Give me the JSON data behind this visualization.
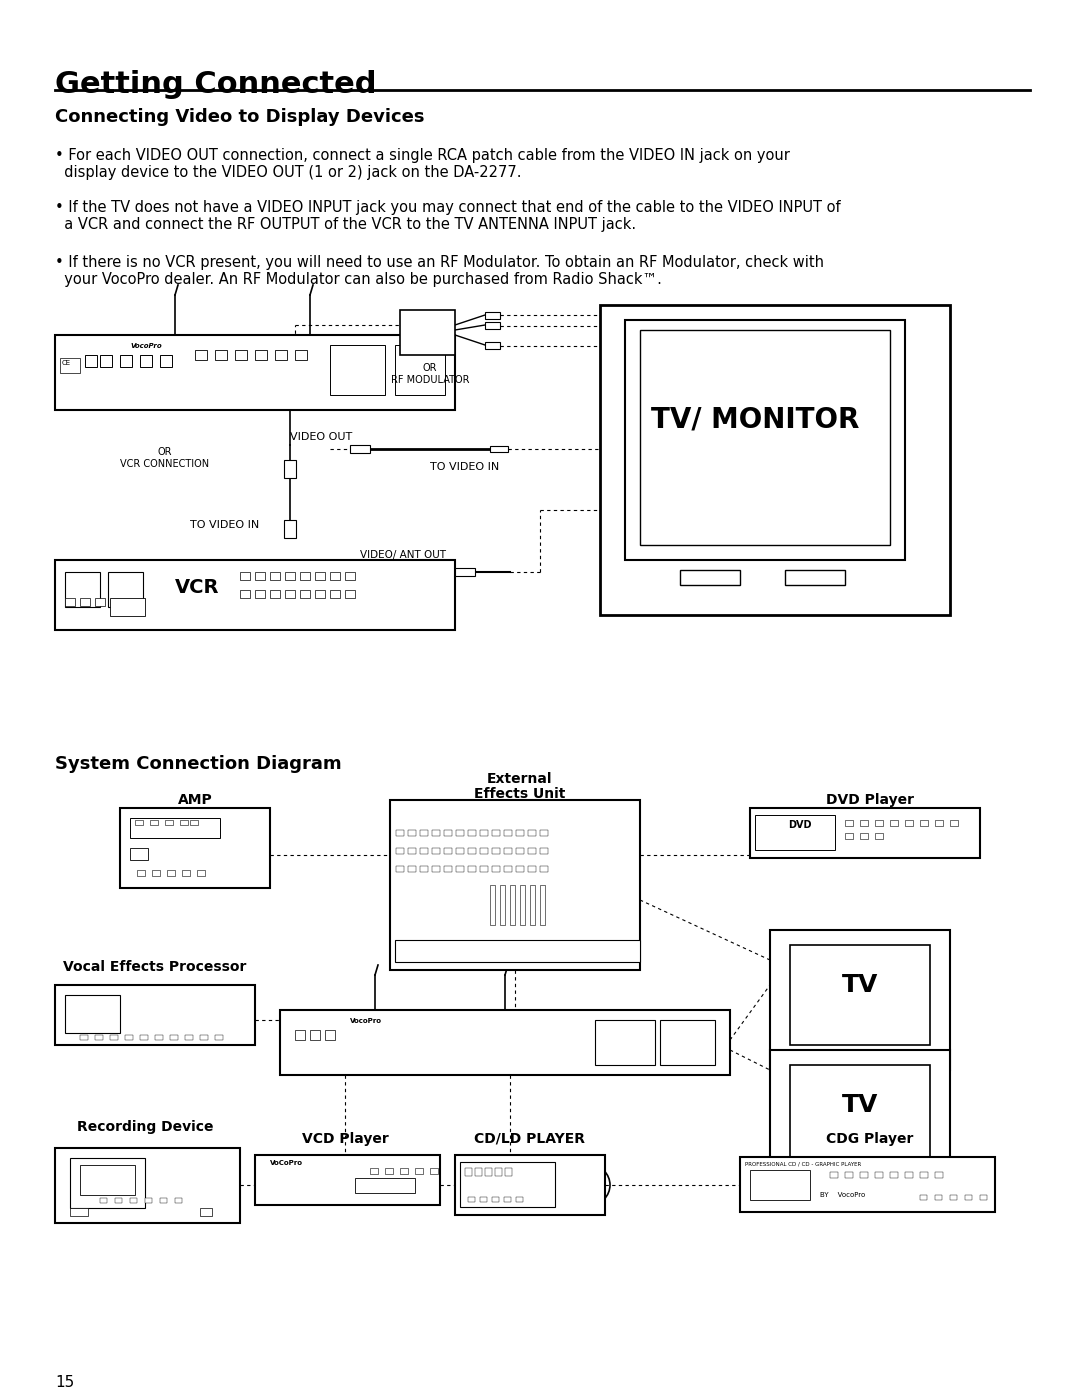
{
  "page_bg": "#ffffff",
  "title": "Getting Connected",
  "section1_title": "Connecting Video to Display Devices",
  "bullet1_line1": "• For each VIDEO OUT connection, connect a single RCA patch cable from the VIDEO IN jack on your",
  "bullet1_line2": "  display device to the VIDEO OUT (1 or 2) jack on the DA-2277.",
  "bullet2_line1": "• If the TV does not have a VIDEO INPUT jack you may connect that end of the cable to the VIDEO INPUT of",
  "bullet2_line2": "  a VCR and connect the RF OUTPUT of the VCR to the TV ANTENNA INPUT jack.",
  "bullet3_line1": "• If there is no VCR present, you will need to use an RF Modulator. To obtain an RF Modulator, check with",
  "bullet3_line2": "  your VocoPro dealer. An RF Modulator can also be purchased from Radio Shack™.",
  "section2_title": "System Connection Diagram",
  "label_amp": "AMP",
  "label_external_effects": "External\nEffects Unit",
  "label_dvd": "DVD Player",
  "label_vocal_effects": "Vocal Effects Processor",
  "label_recording": "Recording Device",
  "label_vcd": "VCD Player",
  "label_cdld": "CD/LD PLAYER",
  "label_cdg": "CDG Player",
  "label_tv1": "TV",
  "label_tv2": "TV",
  "label_tv_monitor": "TV/ MONITOR",
  "label_vcr": "VCR",
  "label_video_out": "VIDEO OUT",
  "label_to_video_in1": "TO VIDEO IN",
  "label_to_video_in2": "TO VIDEO IN",
  "label_or_vcr": "OR\nVCR CONNECTION",
  "label_or_rf": "OR\nRF MODULATOR",
  "label_video_ant_out": "VIDEO/ ANT OUT",
  "page_number": "15"
}
